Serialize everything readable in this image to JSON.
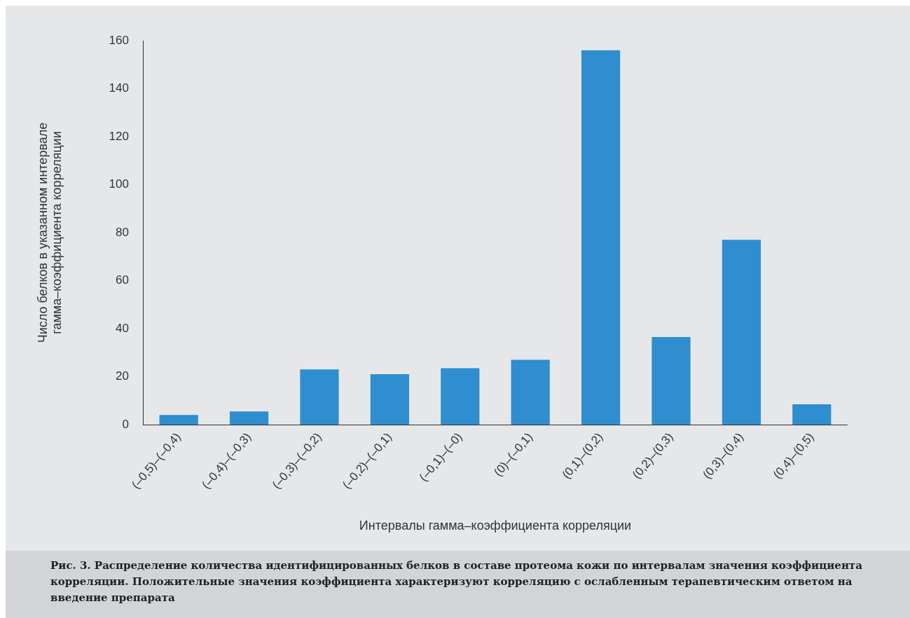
{
  "chart_data": {
    "type": "bar",
    "categories": [
      "(–0,5)–(–0,4)",
      "(–0,4)–(–0,3)",
      "(–0,3)–(–0,2)",
      "(–0,2)–(–0,1)",
      "(–0,1)–(–0)",
      "(0)–(–0,1)",
      "(0,1)–(0,2)",
      "(0,2)–(0,3)",
      "(0,3)–(0,4)",
      "(0,4)–(0,5)"
    ],
    "values": [
      4,
      5.5,
      23,
      21,
      23.5,
      27,
      156,
      36.5,
      77,
      8.5
    ],
    "color": "#2f8ecf",
    "ylim": [
      0,
      160
    ],
    "yticks": [
      0,
      20,
      40,
      60,
      80,
      100,
      120,
      140,
      160
    ],
    "xlabel": "Интервалы гамма–коэффициента корреляции",
    "ylabel": "Число белков в указанном интервале гамма–коэффициента корреляции",
    "grid": false,
    "legend": false,
    "annotations": [
      "Рис. 3. Распределение количества идентифицированных  белков в составе протеома кожи по интервалам значения коэффициента корреляции. Положительные значения коэффициента характеризуют корреляцию с ослабленным терапевтическим ответом на введение препарата"
    ]
  }
}
